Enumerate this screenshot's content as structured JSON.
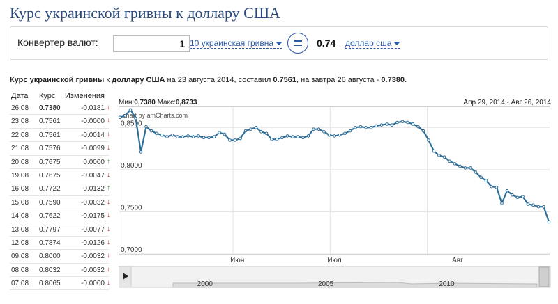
{
  "title": "Курс украинской гривны к доллару США",
  "converter": {
    "label": "Конвертер валют:",
    "amount": "1",
    "from_currency": "10 украинская гривна",
    "result": "0.74",
    "to_currency": "доллар сша"
  },
  "summary": {
    "prefix": "Курс украинской гривны",
    "k": " к ",
    "dollar": "доллару США",
    "mid": " на 23 августа 2014, составил ",
    "value": "0.7561",
    "mid2": ", на завтра 26 августа - ",
    "value2": "0.7380",
    "dot": "."
  },
  "table": {
    "headers": {
      "date": "Дата",
      "rate": "Курс",
      "change": "Изменения"
    },
    "rows": [
      {
        "date": "26.08",
        "rate": "0.7380",
        "change": "-0.0181",
        "dir": "down"
      },
      {
        "date": "23.08",
        "rate": "0.7561",
        "change": "-0.0000",
        "dir": "down"
      },
      {
        "date": "22.08",
        "rate": "0.7561",
        "change": "-0.0014",
        "dir": "down"
      },
      {
        "date": "21.08",
        "rate": "0.7576",
        "change": "-0.0099",
        "dir": "down"
      },
      {
        "date": "20.08",
        "rate": "0.7675",
        "change": "0.0000",
        "dir": "up"
      },
      {
        "date": "19.08",
        "rate": "0.7675",
        "change": "-0.0047",
        "dir": "down"
      },
      {
        "date": "16.08",
        "rate": "0.7722",
        "change": "0.0132",
        "dir": "up"
      },
      {
        "date": "15.08",
        "rate": "0.7590",
        "change": "-0.0032",
        "dir": "down"
      },
      {
        "date": "14.08",
        "rate": "0.7622",
        "change": "-0.0175",
        "dir": "down"
      },
      {
        "date": "13.08",
        "rate": "0.7797",
        "change": "-0.0077",
        "dir": "down"
      },
      {
        "date": "12.08",
        "rate": "0.7874",
        "change": "-0.0126",
        "dir": "down"
      },
      {
        "date": "09.08",
        "rate": "0.8000",
        "change": "-0.0032",
        "dir": "down"
      },
      {
        "date": "08.08",
        "rate": "0.8032",
        "change": "-0.0032",
        "dir": "down"
      },
      {
        "date": "07.08",
        "rate": "0.8065",
        "change": "-0.0000",
        "dir": "down"
      }
    ]
  },
  "chart_top": {
    "min_label": "Мин:",
    "min_value": "0,7380",
    "max_label": " Макс:",
    "max_value": "0,8733",
    "range": "Апр 29, 2014 - Авг 26, 2014"
  },
  "chart_data": {
    "type": "line",
    "credit": "chart by amCharts.com",
    "y_ticks": [
      "0,8500",
      "0,8000",
      "0,7500",
      "0,7000"
    ],
    "ylim": [
      0.7,
      0.875
    ],
    "x_ticks": [
      "Июн",
      "Июл",
      "Авг"
    ],
    "scroll_ticks": [
      "2000",
      "2005",
      "2010"
    ],
    "grid": true,
    "series": [
      {
        "values": [
          0.862,
          0.864,
          0.871,
          0.861,
          0.821,
          0.851,
          0.846,
          0.843,
          0.841,
          0.839,
          0.841,
          0.839,
          0.839,
          0.84,
          0.839,
          0.84,
          0.838,
          0.838,
          0.839,
          0.844,
          0.842,
          0.835,
          0.835,
          0.837,
          0.846,
          0.848,
          0.85,
          0.845,
          0.843,
          0.836,
          0.836,
          0.838,
          0.84,
          0.839,
          0.839,
          0.838,
          0.84,
          0.848,
          0.848,
          0.845,
          0.841,
          0.84,
          0.841,
          0.843,
          0.846,
          0.85,
          0.851,
          0.85,
          0.85,
          0.852,
          0.853,
          0.854,
          0.853,
          0.856,
          0.857,
          0.856,
          0.854,
          0.851,
          0.846,
          0.835,
          0.822,
          0.817,
          0.815,
          0.81,
          0.807,
          0.804,
          0.802,
          0.802,
          0.797,
          0.791,
          0.787,
          0.78,
          0.779,
          0.76,
          0.775,
          0.77,
          0.767,
          0.768,
          0.759,
          0.758,
          0.756,
          0.756,
          0.738
        ]
      }
    ]
  },
  "colors": {
    "line": "#2d6e99",
    "title": "#2a4a7a",
    "link": "#2a5aa8",
    "down": "#cc2222",
    "up": "#2a9a2a"
  }
}
